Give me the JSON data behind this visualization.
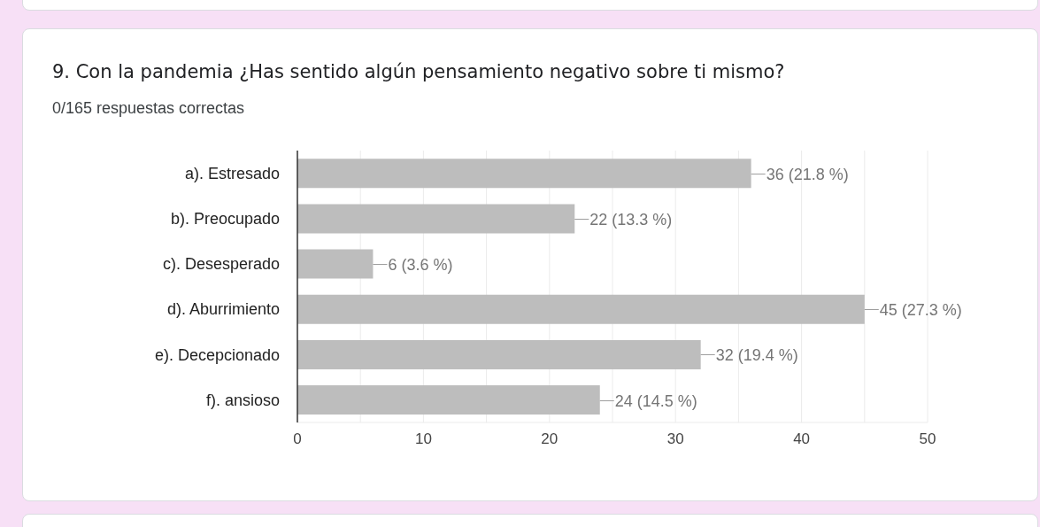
{
  "chart_data": {
    "type": "bar",
    "orientation": "horizontal",
    "title": "9. Con la pandemia ¿Has sentido algún pensamiento negativo sobre ti mismo?",
    "subtitle": "0/165 respuestas correctas",
    "categories": [
      "a). Estresado",
      "b). Preocupado",
      "c). Desesperado",
      "d). Aburrimiento",
      "e). Decepcionado",
      "f). ansioso"
    ],
    "values": [
      36,
      22,
      6,
      45,
      32,
      24
    ],
    "value_labels": [
      "36 (21.8 %)",
      "22 (13.3 %)",
      "6 (3.6 %)",
      "45 (27.3 %)",
      "32 (19.4 %)",
      "24 (14.5 %)"
    ],
    "color": "#bdbdbd",
    "xlim": [
      0,
      50
    ],
    "xticks": [
      0,
      {
        "value": 5,
        "label": null
      },
      10,
      {
        "value": 15,
        "label": null
      },
      20,
      {
        "value": 25,
        "label": null
      },
      30,
      {
        "value": 35,
        "label": null
      },
      40,
      {
        "value": 45,
        "label": null
      },
      50
    ],
    "grid": "x"
  }
}
